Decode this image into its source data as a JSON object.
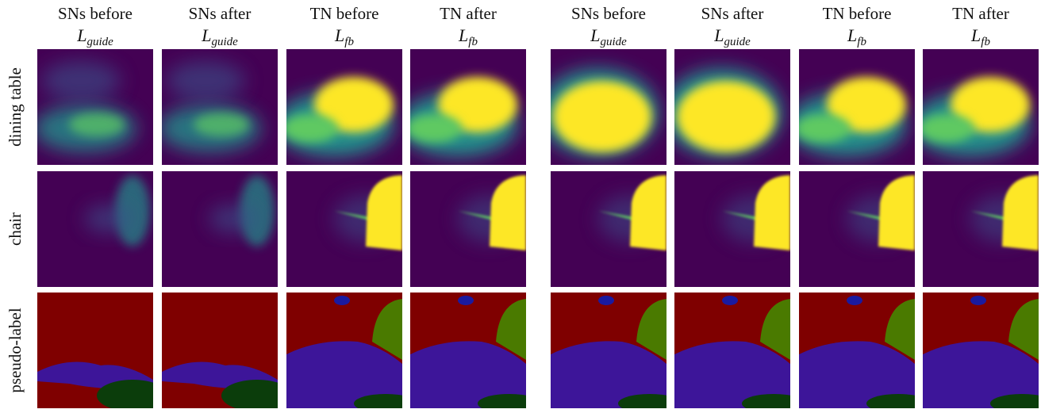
{
  "column_headers": [
    {
      "text": "SNs before",
      "symbol": "L",
      "subscript": "guide"
    },
    {
      "text": "SNs after",
      "symbol": "L",
      "subscript": "guide"
    },
    {
      "text": "TN before",
      "symbol": "L",
      "subscript": "fb"
    },
    {
      "text": "TN after",
      "symbol": "L",
      "subscript": "fb"
    },
    {
      "text": "SNs before",
      "symbol": "L",
      "subscript": "guide"
    },
    {
      "text": "SNs after",
      "symbol": "L",
      "subscript": "guide"
    },
    {
      "text": "TN before",
      "symbol": "L",
      "subscript": "fb"
    },
    {
      "text": "TN after",
      "symbol": "L",
      "subscript": "fb"
    }
  ],
  "row_labels": [
    "dining table",
    "chair",
    "pseudo-label"
  ]
}
